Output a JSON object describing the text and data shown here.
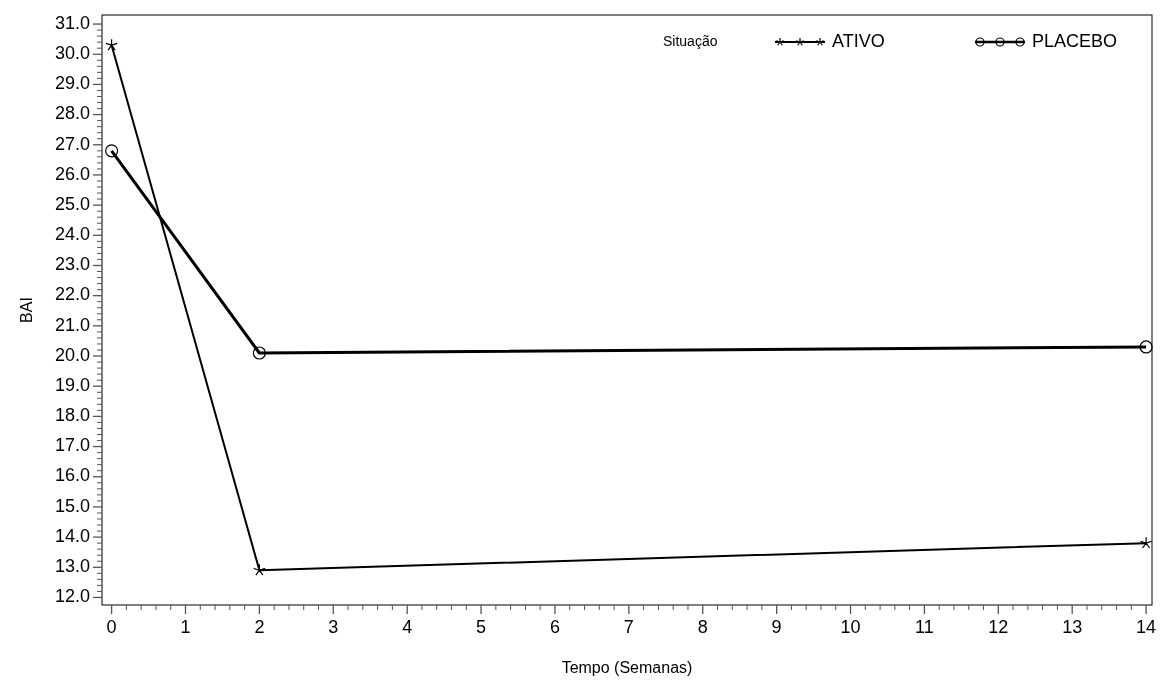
{
  "chart_data": {
    "type": "line",
    "xlabel": "Tempo (Semanas)",
    "ylabel": "BAI",
    "legend_title": "Situação",
    "legend": "top right",
    "x": [
      0,
      2,
      14
    ],
    "series": [
      {
        "name": "ATIVO",
        "color": "#000000",
        "marker": "cross",
        "values": [
          30.3,
          12.9,
          13.8
        ]
      },
      {
        "name": "PLACEBO",
        "color": "#000000",
        "marker": "circle",
        "values": [
          26.8,
          20.1,
          20.3
        ]
      }
    ],
    "xlim": [
      -0.13,
      14.08
    ],
    "ylim": [
      11.75,
      31.3
    ],
    "xticks": [
      0,
      1,
      2,
      3,
      4,
      5,
      6,
      7,
      8,
      9,
      10,
      11,
      12,
      13,
      14
    ],
    "yticks": [
      {
        "value": 12,
        "label": "12.0"
      },
      {
        "value": 13,
        "label": "13.0"
      },
      {
        "value": 14,
        "label": "14.0"
      },
      {
        "value": 15,
        "label": "15.0"
      },
      {
        "value": 16,
        "label": "16.0"
      },
      {
        "value": 17,
        "label": "17.0"
      },
      {
        "value": 18,
        "label": "18.0"
      },
      {
        "value": 19,
        "label": "19.0"
      },
      {
        "value": 20,
        "label": "20.0"
      },
      {
        "value": 21,
        "label": "21.0"
      },
      {
        "value": 22,
        "label": "22.0"
      },
      {
        "value": 23,
        "label": "23.0"
      },
      {
        "value": 24,
        "label": "24.0"
      },
      {
        "value": 25,
        "label": "25.0"
      },
      {
        "value": 26,
        "label": "26.0"
      },
      {
        "value": 27,
        "label": "27.0"
      },
      {
        "value": 28,
        "label": "28.0"
      },
      {
        "value": 29,
        "label": "29.0"
      },
      {
        "value": 30,
        "label": "30.0"
      },
      {
        "value": 31,
        "label": "31.0"
      }
    ],
    "line_style": "solid"
  }
}
